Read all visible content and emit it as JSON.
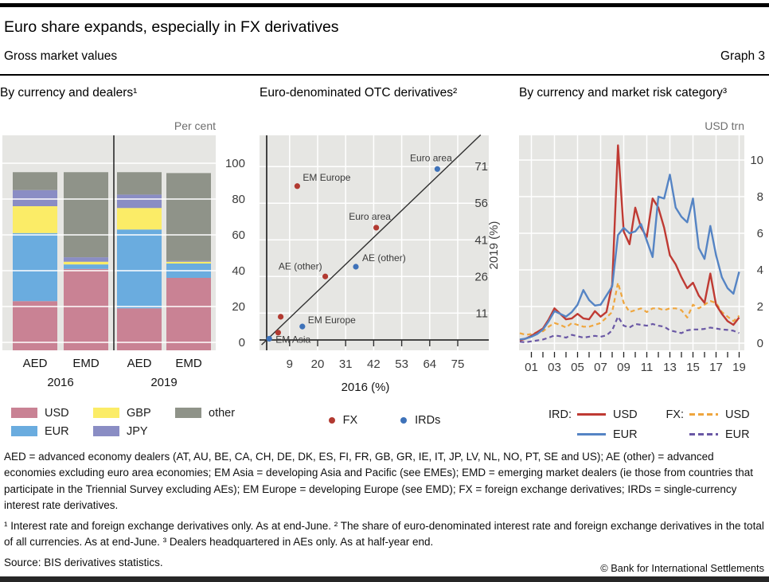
{
  "header": {
    "title": "Euro share expands, especially in FX derivatives",
    "subtitle": "Gross market values",
    "graph_label": "Graph 3"
  },
  "style": {
    "plot_bg": "#e6e6e3",
    "gridline": "#ffffff",
    "rule_color": "#000000"
  },
  "chart_data": [
    {
      "type": "bar",
      "panel_title": "By currency and dealers¹",
      "unit_label": "Per cent",
      "stacked": true,
      "ylim": [
        0,
        100
      ],
      "yticks": [
        0,
        20,
        40,
        60,
        80,
        100
      ],
      "group_labels": [
        "2016",
        "2019"
      ],
      "categories": [
        "AED",
        "EMD",
        "AED",
        "EMD"
      ],
      "series": [
        {
          "name": "USD",
          "color": "#c98294",
          "values": [
            23,
            41,
            19,
            36
          ]
        },
        {
          "name": "EUR",
          "color": "#6aacdf",
          "values": [
            38,
            2.5,
            44,
            8
          ]
        },
        {
          "name": "GBP",
          "color": "#fbec67",
          "values": [
            15,
            1.5,
            12,
            1
          ]
        },
        {
          "name": "JPY",
          "color": "#8a8dc4",
          "values": [
            9,
            2.5,
            7.5,
            0.5
          ]
        },
        {
          "name": "other",
          "color": "#8f9389",
          "values": [
            10,
            47.5,
            12.5,
            49
          ]
        }
      ]
    },
    {
      "type": "scatter",
      "panel_title": "Euro-denominated OTC derivatives²",
      "xlabel": "2016 (%)",
      "ylabel": "2019 (%)",
      "xticks": [
        9,
        20,
        31,
        42,
        53,
        64,
        75
      ],
      "yticks": [
        11,
        26,
        41,
        56,
        71
      ],
      "xlim": [
        -2,
        87
      ],
      "ylim": [
        -4,
        84
      ],
      "diagonal": true,
      "series": [
        {
          "name": "FX",
          "color": "#b23a31",
          "points": [
            {
              "x": 4.5,
              "y": 3
            },
            {
              "x": 5.5,
              "y": 9.5
            },
            {
              "x": 12,
              "y": 63,
              "label": "EM Europe",
              "anchor": "start",
              "dx": 7,
              "dy": -7
            },
            {
              "x": 23,
              "y": 26,
              "label": "AE (other)",
              "anchor": "end",
              "dx": -4,
              "dy": -9
            },
            {
              "x": 43,
              "y": 46,
              "label": "Euro area",
              "anchor": "middle",
              "dx": -8,
              "dy": -10
            }
          ]
        },
        {
          "name": "IRDs",
          "color": "#3e72b9",
          "points": [
            {
              "x": 1,
              "y": 0.5,
              "label": "EM Asia",
              "anchor": "start",
              "dx": 8,
              "dy": 5
            },
            {
              "x": 14,
              "y": 5.5,
              "label": "EM Europe",
              "anchor": "start",
              "dx": 7,
              "dy": -4
            },
            {
              "x": 35,
              "y": 30,
              "label": "AE (other)",
              "anchor": "start",
              "dx": 8,
              "dy": -7
            },
            {
              "x": 67,
              "y": 70,
              "label": "Euro area",
              "anchor": "middle",
              "dx": -8,
              "dy": -10
            }
          ]
        }
      ]
    },
    {
      "type": "line",
      "panel_title": "By currency and market risk category³",
      "unit_label": "USD trn",
      "yticks": [
        0,
        2,
        4,
        6,
        8,
        10
      ],
      "ylim": [
        -0.4,
        11.3
      ],
      "x_start": 2000,
      "x_step": 0.5,
      "xtick_labels": [
        "01",
        "03",
        "05",
        "07",
        "09",
        "11",
        "13",
        "15",
        "17",
        "19"
      ],
      "legend_ird": "IRD:",
      "legend_fx": "FX:",
      "series": [
        {
          "name": "IRD USD",
          "currency": "USD",
          "color": "#bf3a33",
          "dash": false,
          "values": [
            0.15,
            0.25,
            0.4,
            0.6,
            0.8,
            1.3,
            1.9,
            1.6,
            1.3,
            1.35,
            1.6,
            1.35,
            1.3,
            1.75,
            1.45,
            1.7,
            3.2,
            10.8,
            6.1,
            5.4,
            7.4,
            6.3,
            5.8,
            7.9,
            7.4,
            6.3,
            4.8,
            4.3,
            3.6,
            3.0,
            3.3,
            2.6,
            2.2,
            3.8,
            2.1,
            1.6,
            1.2,
            1.0,
            1.4
          ]
        },
        {
          "name": "IRD EUR",
          "currency": "EUR",
          "color": "#5584c4",
          "dash": false,
          "values": [
            0.2,
            0.25,
            0.35,
            0.5,
            0.75,
            1.2,
            1.75,
            1.6,
            1.45,
            1.7,
            2.1,
            2.9,
            2.35,
            2.05,
            2.1,
            2.6,
            3.1,
            5.9,
            6.3,
            6.0,
            6.1,
            6.5,
            5.6,
            4.7,
            8.0,
            7.9,
            9.2,
            7.4,
            6.9,
            6.6,
            7.9,
            5.2,
            4.6,
            6.4,
            4.8,
            3.6,
            3.0,
            2.7,
            3.9
          ]
        },
        {
          "name": "FX USD",
          "currency": "USD",
          "color": "#efa63e",
          "dash": true,
          "values": [
            0.55,
            0.45,
            0.5,
            0.6,
            0.65,
            0.9,
            1.1,
            1.0,
            0.85,
            1.1,
            1.0,
            0.9,
            0.9,
            1.0,
            1.1,
            1.4,
            1.7,
            3.3,
            2.2,
            1.7,
            1.8,
            1.9,
            1.7,
            1.9,
            1.9,
            1.8,
            1.9,
            1.9,
            1.8,
            1.4,
            2.1,
            1.9,
            2.1,
            2.3,
            2.2,
            1.7,
            1.45,
            1.2,
            1.5
          ]
        },
        {
          "name": "FX EUR",
          "currency": "EUR",
          "color": "#6a58a5",
          "dash": true,
          "values": [
            0.08,
            0.05,
            0.1,
            0.15,
            0.2,
            0.3,
            0.42,
            0.38,
            0.3,
            0.45,
            0.38,
            0.3,
            0.35,
            0.4,
            0.35,
            0.42,
            0.7,
            1.45,
            0.95,
            0.85,
            1.05,
            1.0,
            0.95,
            1.05,
            0.95,
            0.9,
            0.7,
            0.62,
            0.55,
            0.7,
            0.75,
            0.75,
            0.78,
            0.85,
            0.8,
            0.75,
            0.72,
            0.68,
            0.55
          ]
        }
      ]
    }
  ],
  "footnotes": {
    "definitions": "AED = advanced economy dealers (AT, AU, BE, CA, CH, DE, DK, ES, FI, FR, GB, GR, IE, IT, JP, LV, NL, NO, PT, SE and US); AE (other) = advanced economies excluding euro area economies; EM Asia = developing Asia and Pacific (see EMEs); EMD = emerging market dealers (ie those from countries that participate in the Triennial Survey excluding AEs); EM Europe = developing Europe (see EMD); FX = foreign exchange derivatives; IRDs = single-currency interest rate derivatives.",
    "numbered": "¹  Interest rate and foreign exchange derivatives only. As at end-June.    ²  The share of euro-denominated interest rate and foreign exchange derivatives in the total of all currencies. As at end-June.    ³  Dealers headquartered in AEs only. As at half-year end.",
    "source": "Source: BIS derivatives statistics.",
    "copyright": "© Bank for International Settlements"
  }
}
